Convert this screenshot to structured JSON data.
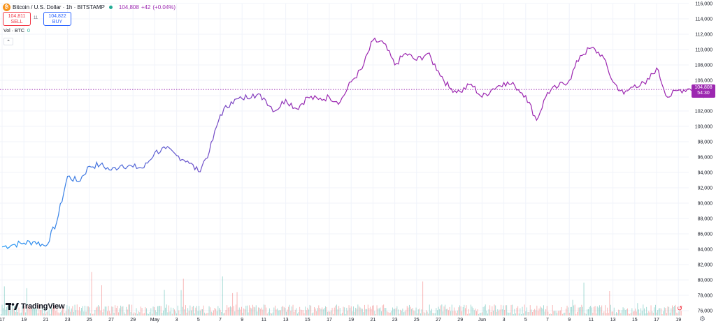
{
  "legend": {
    "symbol": "Bitcoin / U.S. Dollar · 1h · BITSTAMP",
    "price": "104,808",
    "change": "+42",
    "change_pct": "(+0.04%)"
  },
  "trade": {
    "sell_price": "104,811",
    "sell_label": "SELL",
    "spread": "11",
    "buy_price": "104,822",
    "buy_label": "BUY"
  },
  "volume": {
    "label": "Vol · BTC",
    "value": "0"
  },
  "collapse_icon": "chevron-up-icon",
  "brand": "TradingView",
  "price_tag": {
    "price": "104,808",
    "countdown": "54:30"
  },
  "colors": {
    "line_start": "#2196f3",
    "line_end": "#9c27b0",
    "vol_up": "#26a69a",
    "vol_down": "#ef5350",
    "grid": "#f0f3fa",
    "last_price": "#9c27b0"
  },
  "chart_data": {
    "type": "line",
    "ylim": [
      77000,
      116000
    ],
    "y_ticks": [
      "116,000",
      "114,000",
      "112,000",
      "110,000",
      "108,000",
      "106,000",
      "104,000",
      "102,000",
      "100,000",
      "98,000",
      "96,000",
      "94,000",
      "92,000",
      "90,000",
      "88,000",
      "86,000",
      "84,000",
      "82,000",
      "80,000",
      "78,000",
      "76,000"
    ],
    "x_ticks": [
      "17",
      "19",
      "21",
      "23",
      "25",
      "27",
      "29",
      "May",
      "3",
      "5",
      "7",
      "9",
      "11",
      "13",
      "15",
      "17",
      "19",
      "21",
      "23",
      "25",
      "27",
      "29",
      "Jun",
      "3",
      "5",
      "7",
      "9",
      "11",
      "13",
      "15",
      "17",
      "19"
    ],
    "x": [
      "2025-04-17",
      "2025-04-18",
      "2025-04-19",
      "2025-04-20",
      "2025-04-21",
      "2025-04-22",
      "2025-04-23",
      "2025-04-24",
      "2025-04-25",
      "2025-04-26",
      "2025-04-27",
      "2025-04-28",
      "2025-04-29",
      "2025-04-30",
      "2025-05-01",
      "2025-05-02",
      "2025-05-03",
      "2025-05-04",
      "2025-05-05",
      "2025-05-06",
      "2025-05-07",
      "2025-05-08",
      "2025-05-09",
      "2025-05-10",
      "2025-05-11",
      "2025-05-12",
      "2025-05-13",
      "2025-05-14",
      "2025-05-15",
      "2025-05-16",
      "2025-05-17",
      "2025-05-18",
      "2025-05-19",
      "2025-05-20",
      "2025-05-21",
      "2025-05-22",
      "2025-05-23",
      "2025-05-24",
      "2025-05-25",
      "2025-05-26",
      "2025-05-27",
      "2025-05-28",
      "2025-05-29",
      "2025-05-30",
      "2025-05-31",
      "2025-06-01",
      "2025-06-02",
      "2025-06-03",
      "2025-06-04",
      "2025-06-05",
      "2025-06-06",
      "2025-06-07",
      "2025-06-08",
      "2025-06-09",
      "2025-06-10",
      "2025-06-11",
      "2025-06-12",
      "2025-06-13",
      "2025-06-14",
      "2025-06-15",
      "2025-06-16",
      "2025-06-17",
      "2025-06-18",
      "2025-06-19",
      "2025-06-20"
    ],
    "values": [
      84300,
      84600,
      84800,
      85000,
      84400,
      87500,
      93500,
      92800,
      94800,
      95000,
      94300,
      95000,
      94700,
      94600,
      96600,
      97100,
      96200,
      95500,
      94100,
      96700,
      101500,
      103200,
      103600,
      104200,
      103700,
      102000,
      103500,
      102300,
      103800,
      103500,
      103800,
      103200,
      105800,
      107500,
      111200,
      110800,
      108000,
      109500,
      108600,
      109500,
      107200,
      105000,
      104500,
      105500,
      103800,
      104900,
      105700,
      105300,
      104000,
      100800,
      104400,
      105200,
      106000,
      109200,
      110200,
      109300,
      105800,
      104200,
      105400,
      105500,
      107600,
      103800,
      104700,
      104900,
      104800
    ]
  }
}
